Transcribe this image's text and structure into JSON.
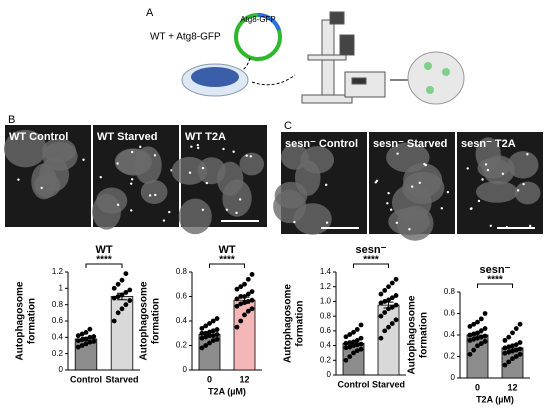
{
  "panels": {
    "A": {
      "letter": "A",
      "construct": "WT + Atg8-GFP",
      "plasmid": "Atg8-GFP"
    },
    "B": {
      "letter": "B",
      "images": [
        "WT Control",
        "WT Starved",
        "WT T2A"
      ]
    },
    "C": {
      "letter": "C",
      "images": [
        "sesn⁻ Control",
        "sesn⁻ Starved",
        "sesn⁻ T2A"
      ]
    }
  },
  "chart_data": [
    {
      "type": "bar",
      "title": "WT",
      "ylabel": [
        "Autophagosome",
        "formation"
      ],
      "significance": "****",
      "categories": [
        "Control",
        "Starved"
      ],
      "colors": [
        "#8c8c8c",
        "#d9d9d9"
      ],
      "values": [
        0.38,
        0.9
      ],
      "errors": [
        0.02,
        0.04
      ],
      "points": [
        [
          0.28,
          0.3,
          0.32,
          0.34,
          0.35,
          0.36,
          0.37,
          0.38,
          0.4,
          0.41,
          0.42,
          0.44,
          0.46,
          0.5
        ],
        [
          0.6,
          0.7,
          0.75,
          0.8,
          0.85,
          0.88,
          0.9,
          0.92,
          0.95,
          0.98,
          1.0,
          1.05,
          1.1,
          1.18
        ]
      ],
      "ylim": [
        0,
        1.2
      ],
      "yticks": [
        0,
        0.2,
        0.4,
        0.6,
        0.8,
        1,
        1.2
      ]
    },
    {
      "type": "bar",
      "title": "WT",
      "ylabel": [
        "Autophagosome",
        "formation"
      ],
      "significance": "****",
      "xlabel": "T2A (µM)",
      "categories": [
        "0",
        "12"
      ],
      "colors": [
        "#8c8c8c",
        "#f4b6b6"
      ],
      "values": [
        0.29,
        0.57
      ],
      "errors": [
        0.015,
        0.025
      ],
      "points": [
        [
          0.18,
          0.2,
          0.22,
          0.24,
          0.25,
          0.26,
          0.27,
          0.28,
          0.28,
          0.29,
          0.3,
          0.3,
          0.31,
          0.32,
          0.33,
          0.34,
          0.36,
          0.38,
          0.4,
          0.42
        ],
        [
          0.35,
          0.4,
          0.45,
          0.48,
          0.5,
          0.52,
          0.54,
          0.55,
          0.56,
          0.57,
          0.58,
          0.6,
          0.6,
          0.62,
          0.64,
          0.66,
          0.68,
          0.7,
          0.74,
          0.78
        ]
      ],
      "ylim": [
        0,
        0.8
      ],
      "yticks": [
        0,
        0.2,
        0.4,
        0.6,
        0.8
      ]
    },
    {
      "type": "bar",
      "title": "sesn⁻",
      "ylabel": [
        "Autophagosome",
        "formation"
      ],
      "significance": "****",
      "categories": [
        "Control",
        "Starved"
      ],
      "colors": [
        "#8c8c8c",
        "#d9d9d9"
      ],
      "values": [
        0.43,
        0.95
      ],
      "errors": [
        0.02,
        0.04
      ],
      "points": [
        [
          0.2,
          0.25,
          0.3,
          0.33,
          0.35,
          0.37,
          0.38,
          0.4,
          0.41,
          0.42,
          0.43,
          0.44,
          0.45,
          0.47,
          0.5,
          0.52,
          0.55,
          0.58,
          0.62,
          0.68
        ],
        [
          0.5,
          0.6,
          0.65,
          0.7,
          0.75,
          0.8,
          0.85,
          0.9,
          0.92,
          0.95,
          0.98,
          1.0,
          1.02,
          1.05,
          1.08,
          1.1,
          1.15,
          1.2,
          1.25,
          1.3
        ]
      ],
      "ylim": [
        0,
        1.4
      ],
      "yticks": [
        0,
        0.2,
        0.4,
        0.6,
        0.8,
        {
          "value": 1,
          "label": "1.0"
        },
        1.2,
        1.4
      ]
    },
    {
      "type": "bar",
      "title": "sesn⁻",
      "ylabel": [
        "Autophagosome",
        "formation"
      ],
      "significance": "****",
      "xlabel": "T2A (µM)",
      "categories": [
        "0",
        "12"
      ],
      "colors": [
        "#8c8c8c",
        "#8c8c8c"
      ],
      "values": [
        0.4,
        0.28
      ],
      "errors": [
        0.02,
        0.02
      ],
      "points": [
        [
          0.22,
          0.26,
          0.3,
          0.32,
          0.34,
          0.35,
          0.36,
          0.37,
          0.38,
          0.39,
          0.4,
          0.41,
          0.42,
          0.44,
          0.46,
          0.48,
          0.5,
          0.52,
          0.55,
          0.6
        ],
        [
          0.12,
          0.15,
          0.18,
          0.2,
          0.22,
          0.23,
          0.24,
          0.25,
          0.26,
          0.27,
          0.28,
          0.29,
          0.3,
          0.31,
          0.33,
          0.35,
          0.38,
          0.42,
          0.46,
          0.5
        ]
      ],
      "ylim": [
        0,
        0.8
      ],
      "yticks": [
        0,
        0.2,
        0.4,
        0.6,
        0.8
      ]
    }
  ]
}
